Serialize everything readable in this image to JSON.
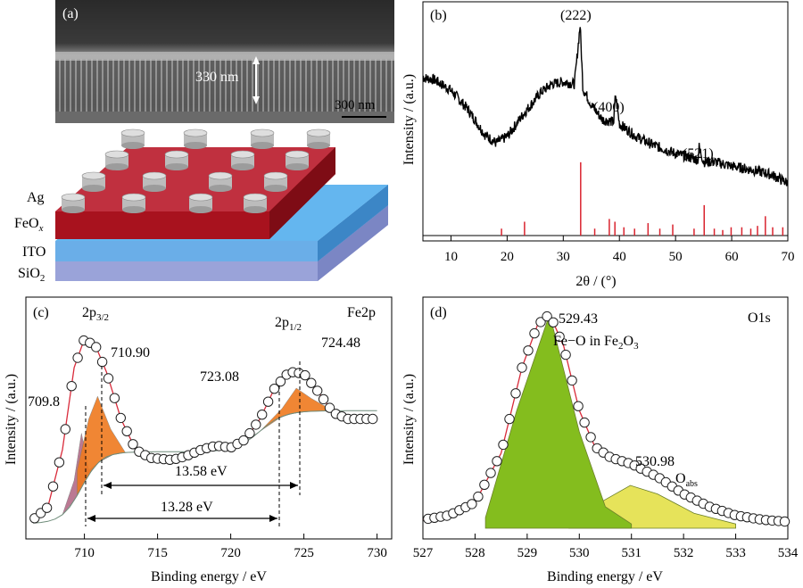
{
  "panel_a": {
    "tag": "(a)",
    "thickness_label": "330 nm",
    "scale_label": "300 nm",
    "layers": [
      "Ag",
      "FeO",
      "ITO",
      "SiO"
    ],
    "feox_sub": "x",
    "sio2_sub": "2"
  },
  "chart_data": [
    {
      "type": "line",
      "panel": "(b)",
      "xlabel": "2θ / (°)",
      "ylabel": "Intensity / (a.u.)",
      "xlim": [
        5,
        70
      ],
      "xticks": [
        10,
        20,
        30,
        40,
        50,
        60,
        70
      ],
      "curve_points": [
        [
          5,
          0.75
        ],
        [
          7,
          0.74
        ],
        [
          10,
          0.69
        ],
        [
          13,
          0.6
        ],
        [
          16,
          0.48
        ],
        [
          18,
          0.44
        ],
        [
          20,
          0.47
        ],
        [
          23,
          0.58
        ],
        [
          26,
          0.68
        ],
        [
          28,
          0.72
        ],
        [
          30,
          0.73
        ],
        [
          32,
          0.72
        ],
        [
          33,
          1.0
        ],
        [
          33.5,
          0.7
        ],
        [
          35,
          0.62
        ],
        [
          37,
          0.55
        ],
        [
          39,
          0.54
        ],
        [
          39.3,
          0.67
        ],
        [
          40,
          0.53
        ],
        [
          43,
          0.47
        ],
        [
          46,
          0.43
        ],
        [
          50,
          0.39
        ],
        [
          54,
          0.36
        ],
        [
          54.2,
          0.42
        ],
        [
          55,
          0.35
        ],
        [
          57,
          0.35
        ],
        [
          60,
          0.33
        ],
        [
          64,
          0.31
        ],
        [
          67,
          0.29
        ],
        [
          70,
          0.25
        ]
      ],
      "reference_lines": [
        [
          19,
          0.05
        ],
        [
          23.1,
          0.1
        ],
        [
          33.1,
          0.53
        ],
        [
          35.6,
          0.05
        ],
        [
          38.2,
          0.12
        ],
        [
          39.2,
          0.1
        ],
        [
          40.8,
          0.06
        ],
        [
          42.7,
          0.05
        ],
        [
          45.1,
          0.09
        ],
        [
          47.2,
          0.05
        ],
        [
          49.5,
          0.08
        ],
        [
          53.3,
          0.05
        ],
        [
          55.1,
          0.22
        ],
        [
          56.9,
          0.05
        ],
        [
          58.4,
          0.04
        ],
        [
          59.9,
          0.06
        ],
        [
          61.8,
          0.06
        ],
        [
          63.4,
          0.05
        ],
        [
          64.6,
          0.07
        ],
        [
          66,
          0.14
        ],
        [
          67.3,
          0.06
        ],
        [
          69.1,
          0.06
        ]
      ],
      "peak_labels": [
        "(222)",
        "(400)",
        "(521)"
      ],
      "reference_color": "#d9232e"
    },
    {
      "type": "line",
      "panel": "(c)",
      "title": "Fe2p",
      "xlabel": "Binding energy / eV",
      "ylabel": "Intensity / (a.u.)",
      "xlim": [
        706,
        731
      ],
      "xticks": [
        710,
        715,
        720,
        725,
        730
      ],
      "series": [
        {
          "values": [
            [
              706.5,
              0.06
            ],
            [
              707.5,
              0.12
            ],
            [
              708.5,
              0.4
            ],
            [
              709.3,
              0.8
            ],
            [
              710,
              0.94
            ],
            [
              710.8,
              0.9
            ],
            [
              711.5,
              0.78
            ],
            [
              712.5,
              0.55
            ],
            [
              713.5,
              0.4
            ],
            [
              714.5,
              0.36
            ],
            [
              716,
              0.35
            ],
            [
              717,
              0.37
            ],
            [
              718,
              0.4
            ],
            [
              719,
              0.42
            ],
            [
              720,
              0.41
            ],
            [
              721,
              0.45
            ],
            [
              722,
              0.55
            ],
            [
              723,
              0.7
            ],
            [
              724,
              0.78
            ],
            [
              725,
              0.77
            ],
            [
              726,
              0.68
            ],
            [
              727,
              0.58
            ],
            [
              728,
              0.55
            ],
            [
              729,
              0.55
            ],
            [
              730,
              0.55
            ]
          ]
        },
        {
          "values": [
            [
              708.5,
              0.05
            ],
            [
              709.3,
              0.25
            ],
            [
              709.8,
              0.48
            ],
            [
              710.3,
              0.3
            ],
            [
              711,
              0.12
            ],
            [
              712,
              0.06
            ]
          ]
        },
        {
          "values": [
            [
              709.5,
              0.3
            ],
            [
              710.3,
              0.55
            ],
            [
              710.9,
              0.66
            ],
            [
              711.8,
              0.5
            ],
            [
              712.8,
              0.38
            ],
            [
              714,
              0.34
            ]
          ]
        },
        {
          "values": [
            [
              720.5,
              0.38
            ],
            [
              722,
              0.48
            ],
            [
              723.08,
              0.55
            ],
            [
              724,
              0.5
            ],
            [
              725,
              0.45
            ]
          ]
        },
        {
          "values": [
            [
              722,
              0.45
            ],
            [
              723.5,
              0.6
            ],
            [
              724.48,
              0.7
            ],
            [
              725.5,
              0.65
            ],
            [
              727,
              0.55
            ]
          ]
        }
      ],
      "peak_labels": [
        "709.8",
        "710.90",
        "723.08",
        "724.48"
      ],
      "orbital_3_2": "2p",
      "orbital_3_2_sub": "3/2",
      "orbital_1_2": "2p",
      "orbital_1_2_sub": "1/2",
      "splits": [
        "13.58 eV",
        "13.28 eV"
      ],
      "colors": {
        "data_marker": "#222222",
        "fit": "#d92a3a",
        "fill_a": "#ef7a1f",
        "fill_b": "#b46b88"
      }
    },
    {
      "type": "line",
      "panel": "(d)",
      "title": "O1s",
      "xlabel": "Binding energy / eV",
      "ylabel": "Intensity / (a.u.)",
      "xlim": [
        527,
        534
      ],
      "xticks": [
        527,
        528,
        529,
        530,
        531,
        532,
        533,
        534
      ],
      "series": [
        {
          "values": [
            [
              527,
              0.04
            ],
            [
              527.5,
              0.06
            ],
            [
              528,
              0.12
            ],
            [
              528.5,
              0.35
            ],
            [
              528.9,
              0.75
            ],
            [
              529.2,
              0.95
            ],
            [
              529.43,
              1.0
            ],
            [
              529.7,
              0.85
            ],
            [
              530,
              0.55
            ],
            [
              530.3,
              0.38
            ],
            [
              530.6,
              0.33
            ],
            [
              531,
              0.3
            ],
            [
              531.5,
              0.24
            ],
            [
              532,
              0.16
            ],
            [
              532.5,
              0.1
            ],
            [
              533,
              0.06
            ],
            [
              533.5,
              0.04
            ],
            [
              534,
              0.03
            ]
          ]
        },
        {
          "values": [
            [
              528.2,
              0.05
            ],
            [
              528.8,
              0.55
            ],
            [
              529.43,
              1.0
            ],
            [
              530,
              0.45
            ],
            [
              530.5,
              0.1
            ],
            [
              531,
              0.02
            ]
          ]
        },
        {
          "values": [
            [
              529.8,
              0.03
            ],
            [
              530.4,
              0.12
            ],
            [
              530.98,
              0.2
            ],
            [
              531.5,
              0.16
            ],
            [
              532.2,
              0.07
            ],
            [
              533,
              0.02
            ]
          ]
        }
      ],
      "peak_labels": [
        "529.43",
        "530.98"
      ],
      "peak_note": "Fe−O in Fe",
      "peak_note_sub_2": "2",
      "peak_note_tail": "O",
      "peak_note_sub_3": "3",
      "abs_main": "O",
      "abs_sub": "abs",
      "colors": {
        "fill_a": "#84bd1e",
        "fill_b": "#e6e35a",
        "fit": "#d92a3a"
      }
    }
  ]
}
